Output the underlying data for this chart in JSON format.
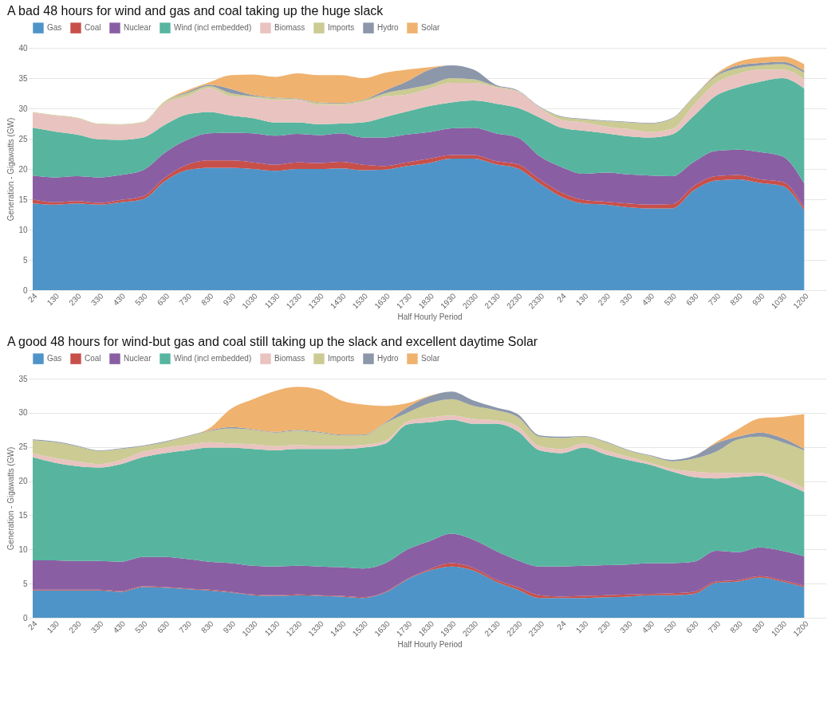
{
  "chart_data": [
    {
      "type": "area",
      "stacked": true,
      "title": "A bad 48 hours for wind and gas and coal taking up the huge slack",
      "xlabel": "Half Hourly Period",
      "ylabel": "Generation - Gigawatts (GW)",
      "categories": [
        "24",
        "130",
        "230",
        "330",
        "430",
        "530",
        "630",
        "730",
        "830",
        "930",
        "1030",
        "1130",
        "1230",
        "1330",
        "1430",
        "1530",
        "1630",
        "1730",
        "1830",
        "1930",
        "2030",
        "2130",
        "2230",
        "2330",
        "24",
        "130",
        "230",
        "330",
        "430",
        "530",
        "630",
        "730",
        "830",
        "930",
        "1030",
        "1200"
      ],
      "ylim": [
        0,
        40
      ],
      "yticks": [
        0,
        5,
        10,
        15,
        20,
        25,
        30,
        35,
        40
      ],
      "grid": "y",
      "legend": "top",
      "series": [
        {
          "name": "Gas",
          "color": "#4f94c8",
          "values": [
            14.3,
            14.1,
            14.3,
            14.1,
            14.5,
            15.0,
            18.0,
            19.8,
            20.2,
            20.2,
            20.0,
            19.7,
            20.0,
            20.0,
            20.1,
            19.8,
            19.9,
            20.5,
            21.0,
            21.7,
            21.7,
            20.8,
            20.1,
            17.6,
            15.4,
            14.3,
            14.1,
            13.7,
            13.5,
            13.5,
            16.5,
            18.1,
            18.3,
            17.7,
            17.2,
            13.2
          ]
        },
        {
          "name": "Coal",
          "color": "#c8504a",
          "values": [
            0.7,
            0.4,
            0.4,
            0.3,
            0.4,
            0.5,
            0.6,
            0.9,
            1.2,
            1.2,
            1.1,
            1.0,
            1.1,
            1.0,
            1.1,
            0.9,
            0.6,
            0.6,
            0.7,
            0.6,
            0.6,
            0.5,
            0.7,
            0.7,
            0.7,
            0.6,
            0.5,
            0.6,
            0.6,
            0.7,
            0.7,
            0.7,
            0.7,
            0.6,
            0.7,
            0.4
          ]
        },
        {
          "name": "Nuclear",
          "color": "#8a5ea3",
          "values": [
            3.9,
            4.1,
            4.1,
            4.2,
            4.1,
            4.3,
            4.1,
            4.1,
            4.5,
            4.6,
            4.8,
            4.8,
            4.7,
            4.6,
            4.7,
            4.5,
            4.7,
            4.6,
            4.4,
            4.4,
            4.5,
            4.6,
            4.4,
            3.8,
            4.2,
            4.3,
            4.8,
            4.8,
            4.8,
            4.6,
            4.0,
            4.2,
            4.2,
            4.5,
            4.2,
            4.0
          ]
        },
        {
          "name": "Wind (incl embedded)",
          "color": "#57b59f",
          "values": [
            7.9,
            7.6,
            6.9,
            6.3,
            5.8,
            5.4,
            4.6,
            4.2,
            3.5,
            2.8,
            2.5,
            2.2,
            1.9,
            1.8,
            1.6,
            2.5,
            3.4,
            3.8,
            4.3,
            4.3,
            4.5,
            4.9,
            4.9,
            6.4,
            6.5,
            7.1,
            6.5,
            6.3,
            6.3,
            6.9,
            7.6,
            9.1,
            10.3,
            11.6,
            12.9,
            15.7
          ]
        },
        {
          "name": "Biomass",
          "color": "#e9c3bf",
          "values": [
            2.5,
            2.6,
            2.7,
            2.5,
            2.5,
            2.5,
            3.6,
            3.0,
            4.0,
            3.2,
            3.4,
            3.7,
            3.7,
            3.2,
            3.1,
            3.4,
            3.4,
            2.8,
            2.9,
            3.2,
            2.9,
            2.7,
            2.7,
            1.6,
            1.3,
            1.4,
            1.1,
            1.2,
            0.9,
            0.9,
            1.8,
            2.1,
            2.2,
            2.0,
            1.4,
            1.5
          ]
        },
        {
          "name": "Imports",
          "color": "#cbcb93",
          "values": [
            0.1,
            0.1,
            0.1,
            0.1,
            0.1,
            0.1,
            0.3,
            0.5,
            0.3,
            0.5,
            0.2,
            0.3,
            0.1,
            0.3,
            0.2,
            0.2,
            0.5,
            0.9,
            0.6,
            0.8,
            0.6,
            0.2,
            0.1,
            0.1,
            0.5,
            0.5,
            0.9,
            1.1,
            1.4,
            1.7,
            1.3,
            1.1,
            0.9,
            0.7,
            0.9,
            1.1
          ]
        },
        {
          "name": "Hydro",
          "color": "#8c97aa",
          "values": [
            0,
            0,
            0,
            0,
            0,
            0,
            0,
            0.2,
            0.2,
            0.7,
            0.2,
            0.1,
            0.1,
            0.1,
            0.1,
            0.1,
            0.5,
            1.3,
            2.5,
            2.1,
            1.6,
            0.2,
            0.1,
            0.1,
            0.1,
            0.1,
            0.1,
            0.1,
            0.1,
            0.1,
            0.1,
            0.2,
            0.5,
            0.4,
            0.4,
            0.3
          ]
        },
        {
          "name": "Solar",
          "color": "#f0b26f",
          "values": [
            0,
            0,
            0,
            0,
            0,
            0,
            0,
            0.3,
            0.4,
            2.3,
            3.4,
            3.4,
            4.2,
            4.5,
            4.6,
            3.6,
            2.9,
            1.9,
            0.4,
            0,
            0,
            0,
            0,
            0,
            0,
            0,
            0,
            0,
            0,
            0,
            0,
            0.2,
            0.6,
            0.9,
            0.9,
            1.1
          ]
        }
      ]
    },
    {
      "type": "area",
      "stacked": true,
      "title": "A good 48 hours for wind-but gas and coal still taking up the slack and excellent daytime Solar",
      "xlabel": "Half Hourly Period",
      "ylabel": "Generation - Gigawatts (GW)",
      "categories": [
        "24",
        "130",
        "230",
        "330",
        "430",
        "530",
        "630",
        "730",
        "830",
        "930",
        "1030",
        "1130",
        "1230",
        "1330",
        "1430",
        "1530",
        "1630",
        "1730",
        "1830",
        "1930",
        "2030",
        "2130",
        "2230",
        "2330",
        "24",
        "130",
        "230",
        "330",
        "430",
        "530",
        "630",
        "730",
        "830",
        "930",
        "1030",
        "1200"
      ],
      "ylim": [
        0,
        35
      ],
      "yticks": [
        0,
        5,
        10,
        15,
        20,
        25,
        30,
        35
      ],
      "grid": "y",
      "legend": "top",
      "series": [
        {
          "name": "Gas",
          "color": "#4f94c8",
          "values": [
            4.0,
            4.0,
            4.0,
            4.0,
            3.8,
            4.5,
            4.4,
            4.2,
            4.0,
            3.7,
            3.3,
            3.2,
            3.3,
            3.2,
            3.1,
            2.9,
            3.7,
            5.6,
            6.9,
            7.5,
            6.9,
            5.3,
            4.1,
            2.9,
            2.9,
            2.9,
            3.0,
            3.1,
            3.3,
            3.3,
            3.5,
            5.1,
            5.3,
            5.9,
            5.3,
            4.5
          ]
        },
        {
          "name": "Coal",
          "color": "#c8504a",
          "values": [
            0.1,
            0.1,
            0.1,
            0.1,
            0.1,
            0.1,
            0.1,
            0.1,
            0.1,
            0.1,
            0.1,
            0.1,
            0.1,
            0.1,
            0.1,
            0.1,
            0.1,
            0.1,
            0.2,
            0.5,
            0.4,
            0.3,
            0.4,
            0.4,
            0.2,
            0.3,
            0.3,
            0.3,
            0.2,
            0.3,
            0.3,
            0.2,
            0.2,
            0.2,
            0.2,
            0.2
          ]
        },
        {
          "name": "Nuclear",
          "color": "#8a5ea3",
          "values": [
            4.3,
            4.3,
            4.2,
            4.2,
            4.3,
            4.3,
            4.4,
            4.3,
            4.1,
            4.2,
            4.2,
            4.2,
            4.2,
            4.2,
            4.2,
            4.2,
            4.2,
            4.3,
            4.1,
            4.3,
            4.1,
            4.2,
            3.9,
            4.2,
            4.4,
            4.4,
            4.4,
            4.4,
            4.5,
            4.4,
            4.4,
            4.5,
            4.1,
            4.2,
            4.3,
            4.3
          ]
        },
        {
          "name": "Wind (incl embedded)",
          "color": "#57b59f",
          "values": [
            15.1,
            14.3,
            13.9,
            13.7,
            14.3,
            14.6,
            15.2,
            15.9,
            16.7,
            16.9,
            17.1,
            17.0,
            17.1,
            17.2,
            17.3,
            17.7,
            17.5,
            18.3,
            17.4,
            16.7,
            17.0,
            18.6,
            18.9,
            17.0,
            16.6,
            17.3,
            16.2,
            15.3,
            14.4,
            13.4,
            12.4,
            10.6,
            11.0,
            10.5,
            10.0,
            9.4
          ]
        },
        {
          "name": "Biomass",
          "color": "#e9c3bf",
          "values": [
            0.6,
            0.7,
            0.7,
            0.5,
            0.6,
            0.8,
            0.8,
            0.8,
            0.8,
            0.6,
            0.7,
            0.6,
            0.6,
            0.5,
            0.5,
            0.4,
            0.4,
            0.4,
            0.7,
            0.6,
            0.7,
            0.5,
            0.7,
            0.6,
            0.6,
            0.6,
            0.6,
            0.5,
            0.3,
            0.4,
            0.8,
            0.8,
            0.6,
            0.4,
            0.6,
            0.6
          ]
        },
        {
          "name": "Imports",
          "color": "#cbcb93",
          "values": [
            1.9,
            2.3,
            2.2,
            1.9,
            1.6,
            0.8,
            0.8,
            1.2,
            1.6,
            2.2,
            2.1,
            2.0,
            2.1,
            1.9,
            1.5,
            1.4,
            2.6,
            1.3,
            2.1,
            2.4,
            1.9,
            1.5,
            1.4,
            1.4,
            1.6,
            1.0,
            1.2,
            0.9,
            1.0,
            1.1,
            1.9,
            3.1,
            4.9,
            5.3,
            5.3,
            5.5
          ]
        },
        {
          "name": "Hydro",
          "color": "#8c97aa",
          "values": [
            0.1,
            0.1,
            0.1,
            0.1,
            0.1,
            0.1,
            0.1,
            0.1,
            0.1,
            0.2,
            0.1,
            0.1,
            0.1,
            0.1,
            0.1,
            0.1,
            0.1,
            0.8,
            1.0,
            1.1,
            0.8,
            0.4,
            0.4,
            0.2,
            0.2,
            0.1,
            0.1,
            0.1,
            0.1,
            0.2,
            0.4,
            1.2,
            0.4,
            0.6,
            0.6,
            0.2
          ]
        },
        {
          "name": "Solar",
          "color": "#f0b26f",
          "values": [
            0,
            0,
            0,
            0,
            0,
            0,
            0,
            0,
            0.3,
            2.7,
            4.4,
            6.0,
            6.3,
            6.2,
            5.0,
            4.4,
            2.4,
            0.6,
            0.1,
            0,
            0,
            0,
            0,
            0,
            0,
            0,
            0,
            0,
            0,
            0,
            0,
            0.2,
            1.1,
            2.1,
            3.1,
            5.1
          ]
        }
      ]
    }
  ]
}
